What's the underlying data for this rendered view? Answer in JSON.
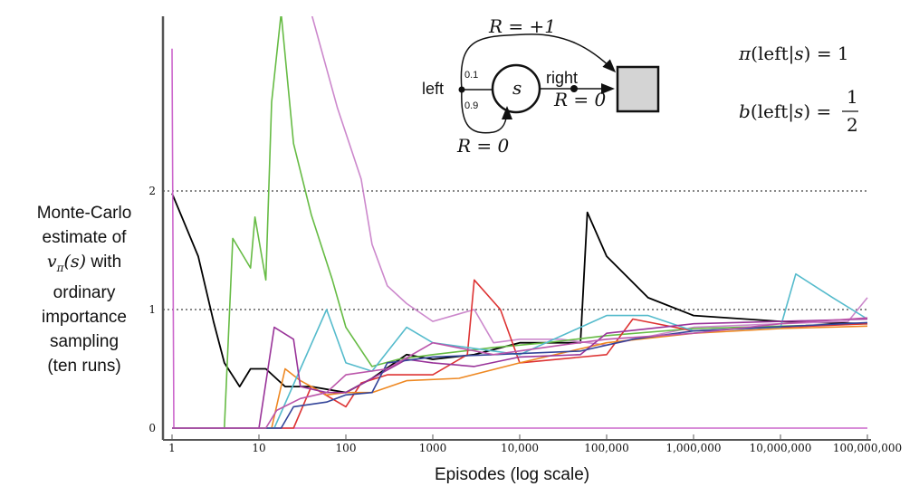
{
  "chart_data": {
    "type": "line",
    "title": "",
    "ylabel_lines": [
      "Monte-Carlo",
      "estimate of",
      "v_π(s) with",
      "ordinary",
      "importance",
      "sampling",
      "(ten runs)"
    ],
    "ylabel_math": "vπ(s)",
    "xlabel": "Episodes (log scale)",
    "x_scale": "log",
    "xlim": [
      1,
      100000000
    ],
    "ylim": [
      0,
      2.7
    ],
    "x_ticks": [
      1,
      10,
      100,
      1000,
      10000,
      100000,
      1000000,
      10000000,
      100000000
    ],
    "x_tick_labels": [
      "1",
      "10",
      "100",
      "1000",
      "10,000",
      "100,000",
      "1,000,000",
      "10,000,000",
      "100,000,000"
    ],
    "y_ticks": [
      0,
      1,
      2
    ],
    "y_tick_labels": [
      "0",
      "1",
      "2"
    ],
    "reference_lines": [
      1,
      2
    ],
    "grid": false,
    "series": [
      {
        "color": "#000000",
        "points": [
          [
            1,
            1.98
          ],
          [
            2,
            1.45
          ],
          [
            3,
            0.9
          ],
          [
            4,
            0.55
          ],
          [
            6,
            0.35
          ],
          [
            8,
            0.5
          ],
          [
            12,
            0.5
          ],
          [
            20,
            0.35
          ],
          [
            40,
            0.35
          ],
          [
            100,
            0.3
          ],
          [
            200,
            0.42
          ],
          [
            500,
            0.62
          ],
          [
            1000,
            0.58
          ],
          [
            3000,
            0.62
          ],
          [
            10000,
            0.72
          ],
          [
            50000,
            0.72
          ],
          [
            60000,
            1.82
          ],
          [
            100000,
            1.45
          ],
          [
            300000,
            1.1
          ],
          [
            1000000,
            0.95
          ],
          [
            10000000,
            0.9
          ],
          [
            100000000,
            0.88
          ]
        ]
      },
      {
        "color": "#cc66cc",
        "points": [
          [
            1,
            3.2
          ],
          [
            1.05,
            0
          ],
          [
            1.1,
            0
          ],
          [
            100000000,
            0
          ]
        ]
      },
      {
        "color": "#cc88cc",
        "points": [
          [
            40,
            3.5
          ],
          [
            80,
            2.7
          ],
          [
            150,
            2.1
          ],
          [
            200,
            1.55
          ],
          [
            300,
            1.2
          ],
          [
            500,
            1.05
          ],
          [
            1000,
            0.9
          ],
          [
            3000,
            1.0
          ],
          [
            5000,
            0.72
          ],
          [
            10000,
            0.75
          ],
          [
            30000,
            0.75
          ],
          [
            100000,
            0.7
          ],
          [
            1000000,
            0.85
          ],
          [
            10000000,
            0.88
          ],
          [
            60000000,
            0.9
          ],
          [
            100000000,
            1.1
          ]
        ]
      },
      {
        "color": "#66bb44",
        "points": [
          [
            1,
            0
          ],
          [
            4,
            0
          ],
          [
            5,
            1.6
          ],
          [
            8,
            1.35
          ],
          [
            9,
            1.78
          ],
          [
            12,
            1.25
          ],
          [
            14,
            2.75
          ],
          [
            18,
            3.5
          ],
          [
            25,
            2.4
          ],
          [
            40,
            1.8
          ],
          [
            70,
            1.25
          ],
          [
            100,
            0.85
          ],
          [
            200,
            0.52
          ],
          [
            400,
            0.58
          ],
          [
            1000,
            0.62
          ],
          [
            5000,
            0.68
          ],
          [
            20000,
            0.72
          ],
          [
            100000,
            0.78
          ],
          [
            1000000,
            0.84
          ],
          [
            100000000,
            0.88
          ]
        ]
      },
      {
        "color": "#dd3333",
        "points": [
          [
            1,
            0
          ],
          [
            25,
            0
          ],
          [
            40,
            0.35
          ],
          [
            100,
            0.18
          ],
          [
            150,
            0.38
          ],
          [
            300,
            0.45
          ],
          [
            1000,
            0.45
          ],
          [
            2500,
            0.62
          ],
          [
            3000,
            1.25
          ],
          [
            6000,
            1.0
          ],
          [
            10000,
            0.55
          ],
          [
            100000,
            0.62
          ],
          [
            200000,
            0.92
          ],
          [
            1000000,
            0.82
          ],
          [
            100000000,
            0.88
          ]
        ]
      },
      {
        "color": "#ee8822",
        "points": [
          [
            1,
            0
          ],
          [
            14,
            0
          ],
          [
            20,
            0.5
          ],
          [
            30,
            0.4
          ],
          [
            60,
            0.28
          ],
          [
            100,
            0.3
          ],
          [
            200,
            0.3
          ],
          [
            500,
            0.4
          ],
          [
            2000,
            0.42
          ],
          [
            10000,
            0.55
          ],
          [
            100000,
            0.72
          ],
          [
            1000000,
            0.8
          ],
          [
            10000000,
            0.84
          ],
          [
            100000000,
            0.86
          ]
        ]
      },
      {
        "color": "#55bbcc",
        "points": [
          [
            1,
            0
          ],
          [
            15,
            0
          ],
          [
            30,
            0.5
          ],
          [
            60,
            1.0
          ],
          [
            100,
            0.55
          ],
          [
            200,
            0.48
          ],
          [
            500,
            0.85
          ],
          [
            1000,
            0.72
          ],
          [
            10000,
            0.62
          ],
          [
            100000,
            0.95
          ],
          [
            300000,
            0.95
          ],
          [
            1000000,
            0.82
          ],
          [
            10000000,
            0.85
          ],
          [
            15000000,
            1.3
          ],
          [
            40000000,
            1.1
          ],
          [
            100000000,
            0.92
          ]
        ]
      },
      {
        "color": "#993399",
        "points": [
          [
            1,
            0
          ],
          [
            10,
            0
          ],
          [
            15,
            0.85
          ],
          [
            25,
            0.75
          ],
          [
            30,
            0.35
          ],
          [
            60,
            0.3
          ],
          [
            100,
            0.3
          ],
          [
            200,
            0.42
          ],
          [
            500,
            0.58
          ],
          [
            1000,
            0.55
          ],
          [
            3000,
            0.52
          ],
          [
            10000,
            0.6
          ],
          [
            50000,
            0.62
          ],
          [
            100000,
            0.8
          ],
          [
            1000000,
            0.88
          ],
          [
            100000000,
            0.92
          ]
        ]
      },
      {
        "color": "#334499",
        "points": [
          [
            1,
            0
          ],
          [
            18,
            0
          ],
          [
            25,
            0.18
          ],
          [
            60,
            0.22
          ],
          [
            100,
            0.28
          ],
          [
            200,
            0.3
          ],
          [
            300,
            0.55
          ],
          [
            1000,
            0.6
          ],
          [
            5000,
            0.62
          ],
          [
            50000,
            0.65
          ],
          [
            200000,
            0.75
          ],
          [
            1000000,
            0.82
          ],
          [
            100000000,
            0.89
          ]
        ]
      },
      {
        "color": "#bb55aa",
        "points": [
          [
            1,
            0
          ],
          [
            12,
            0
          ],
          [
            16,
            0.15
          ],
          [
            30,
            0.25
          ],
          [
            60,
            0.3
          ],
          [
            100,
            0.45
          ],
          [
            300,
            0.5
          ],
          [
            1000,
            0.72
          ],
          [
            5000,
            0.62
          ],
          [
            30000,
            0.7
          ],
          [
            100000,
            0.75
          ],
          [
            1000000,
            0.8
          ],
          [
            10000000,
            0.88
          ],
          [
            100000000,
            0.93
          ]
        ]
      }
    ],
    "inset": {
      "state_label": "s",
      "left_label": "left",
      "right_label": "right",
      "p_top": "0.1",
      "p_bottom": "0.9",
      "reward_top": "R = +1",
      "reward_right": "R = 0",
      "reward_bottom": "R = 0",
      "formula_target": "π(left|s) = 1",
      "formula_behavior": "b(left|s) = 1/2"
    }
  }
}
